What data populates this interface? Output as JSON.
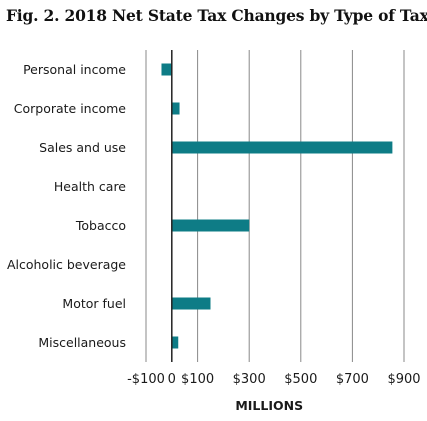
{
  "chart_data": {
    "type": "bar",
    "orientation": "horizontal",
    "title": "Fig. 2. 2018 Net State Tax Changes by Type of Tax",
    "xlabel": "MILLIONS",
    "ylabel": "",
    "categories": [
      "Personal income",
      "Corporate income",
      "Sales and use",
      "Health care",
      "Tobacco",
      "Alcoholic beverage",
      "Motor fuel",
      "Miscellaneous"
    ],
    "values": [
      -40,
      30,
      855,
      0,
      300,
      0,
      150,
      25
    ],
    "xlim": [
      -100,
      900
    ],
    "xticks": [
      -100,
      0,
      100,
      300,
      500,
      700,
      900
    ],
    "xtick_labels": [
      "-$100",
      "0",
      "$100",
      "$300",
      "$500",
      "$700",
      "$900"
    ],
    "grid": true,
    "bar_color": "#0e7c86",
    "zero_line_color": "#222222",
    "grid_color": "#888888"
  }
}
